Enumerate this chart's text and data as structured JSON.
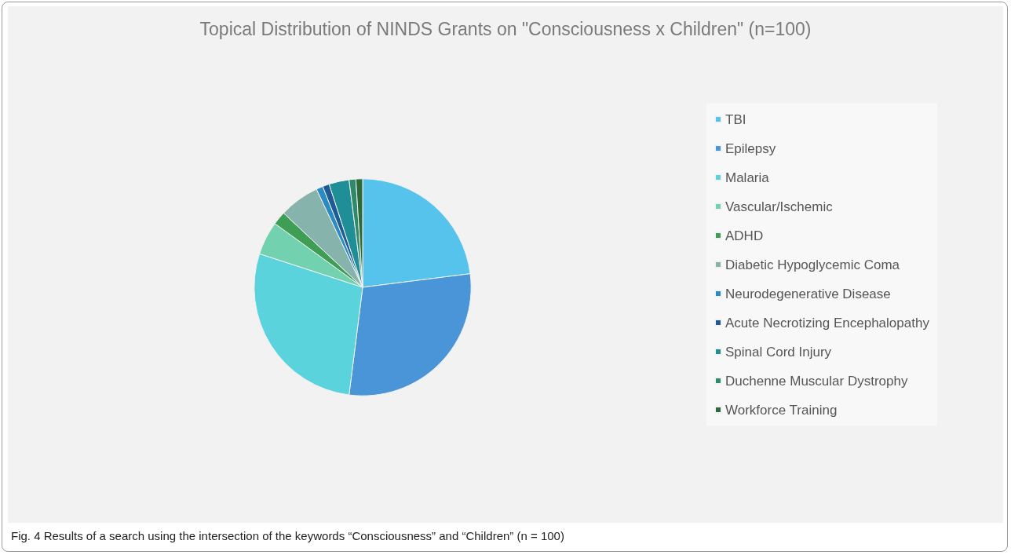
{
  "chart_data": {
    "type": "pie",
    "title": "Topical Distribution of NINDS Grants on \"Consciousness x Children\" (n=100)",
    "categories": [
      "TBI",
      "Epilepsy",
      "Malaria",
      "Vascular/Ischemic",
      "ADHD",
      "Diabetic Hypoglycemic Coma",
      "Neurodegenerative Disease",
      "Acute Necrotizing Encephalopathy",
      "Spinal Cord Injury",
      "Duchenne Muscular Dystrophy",
      "Workforce Training"
    ],
    "values": [
      23,
      29,
      28,
      5,
      2,
      6,
      1,
      1,
      3,
      1,
      1
    ],
    "colors": [
      "#56c3ec",
      "#4a94d8",
      "#5ad3dc",
      "#72d2b0",
      "#3e9e55",
      "#86b4ad",
      "#2a8ac2",
      "#1f5a94",
      "#1f8e96",
      "#2f8a6a",
      "#2c6a3a"
    ],
    "legend": "right",
    "annotations": [
      "Fig. 4 Results of a search using the intersection of the keywords “Consciousness” and “Children” (n = 100)"
    ]
  }
}
